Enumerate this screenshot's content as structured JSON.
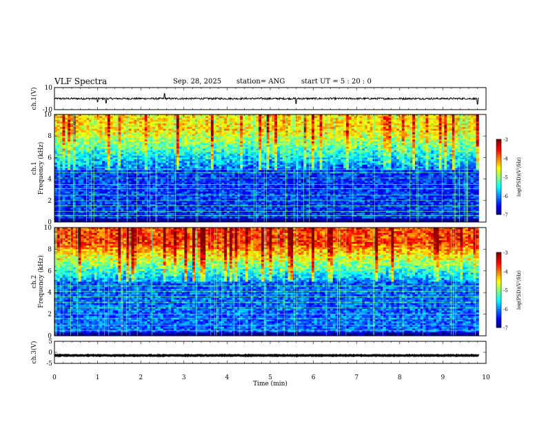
{
  "header": {
    "title": "VLF Spectra",
    "date": "Sep. 28, 2025",
    "station": "station= ANG",
    "start_ut": "start  UT  =   5  : 20 : 0"
  },
  "colors": {
    "colormap": [
      "#000080",
      "#0000ff",
      "#0080ff",
      "#00ffff",
      "#80ff80",
      "#ffff00",
      "#ff8000",
      "#ff0000",
      "#800000"
    ],
    "waveform": "#000000",
    "background": "#ffffff"
  },
  "chart_data": [
    {
      "type": "line",
      "id": "ch1-waveform",
      "ylabel": "ch.1(V)",
      "ylim": [
        -10,
        10
      ],
      "y_ticks": [
        "10",
        "-10"
      ],
      "xlim": [
        0,
        10
      ],
      "baseline_v": 0,
      "spikes": [
        {
          "t": 1.0,
          "v": -3
        },
        {
          "t": 1.2,
          "v": -4
        },
        {
          "t": 2.55,
          "v": 4.5
        },
        {
          "t": 5.6,
          "v": -4.5
        },
        {
          "t": 9.8,
          "v": -5
        }
      ]
    },
    {
      "type": "heatmap",
      "id": "ch1-spectrogram",
      "ylabel": "ch.1\nFrequency  (kHz)",
      "ylabel_lines": [
        "ch.1",
        "Frequency  (kHz)"
      ],
      "y_ticks": [
        "0",
        "2",
        "4",
        "6",
        "8",
        "10"
      ],
      "ylim": [
        0,
        10
      ],
      "xlim": [
        0,
        9.83
      ],
      "colorbar": {
        "label": "log(PSD)(V²/Hz)",
        "ticks": [
          "-3",
          "-4",
          "-5",
          "-6",
          "-7"
        ],
        "range": [
          -7,
          -3
        ]
      },
      "band_boundary_khz": 4.8,
      "low_band_level": -6.3,
      "high_band_level": -4.6,
      "lines_khz": [
        0.6,
        1.0,
        1.5,
        2.0,
        2.5,
        3.1,
        3.5,
        4.1,
        4.6,
        4.9
      ]
    },
    {
      "type": "heatmap",
      "id": "ch2-spectrogram",
      "ylabel": "ch.2\nFrequency  (kHz)",
      "ylabel_lines": [
        "ch.2",
        "Frequency  (kHz)"
      ],
      "y_ticks": [
        "0",
        "2",
        "4",
        "6",
        "8",
        "10"
      ],
      "ylim": [
        0,
        10
      ],
      "xlim": [
        0,
        9.83
      ],
      "colorbar": {
        "label": "log(PSD)(V²/Hz)",
        "ticks": [
          "-3",
          "-4",
          "-5",
          "-6",
          "-7"
        ],
        "range": [
          -7,
          -3
        ]
      },
      "band_boundary_khz": 5.0,
      "low_band_level": -6.1,
      "high_band_level": -3.9,
      "lines_khz": [
        0.5,
        1.0,
        1.6,
        2.0,
        2.6,
        3.1,
        3.6,
        4.1,
        4.6
      ]
    },
    {
      "type": "line",
      "id": "ch3-waveform",
      "ylabel": "ch.3(V)",
      "ylim": [
        -5,
        5
      ],
      "y_ticks": [
        "5",
        "0",
        "-5"
      ],
      "xlim": [
        0,
        10
      ],
      "baseline_v": -1.4,
      "spikes": []
    }
  ],
  "x_axis": {
    "label": "Time  (min)",
    "ticks": [
      "0",
      "1",
      "2",
      "3",
      "4",
      "5",
      "6",
      "7",
      "8",
      "9",
      "10"
    ],
    "range": [
      0,
      10
    ]
  }
}
